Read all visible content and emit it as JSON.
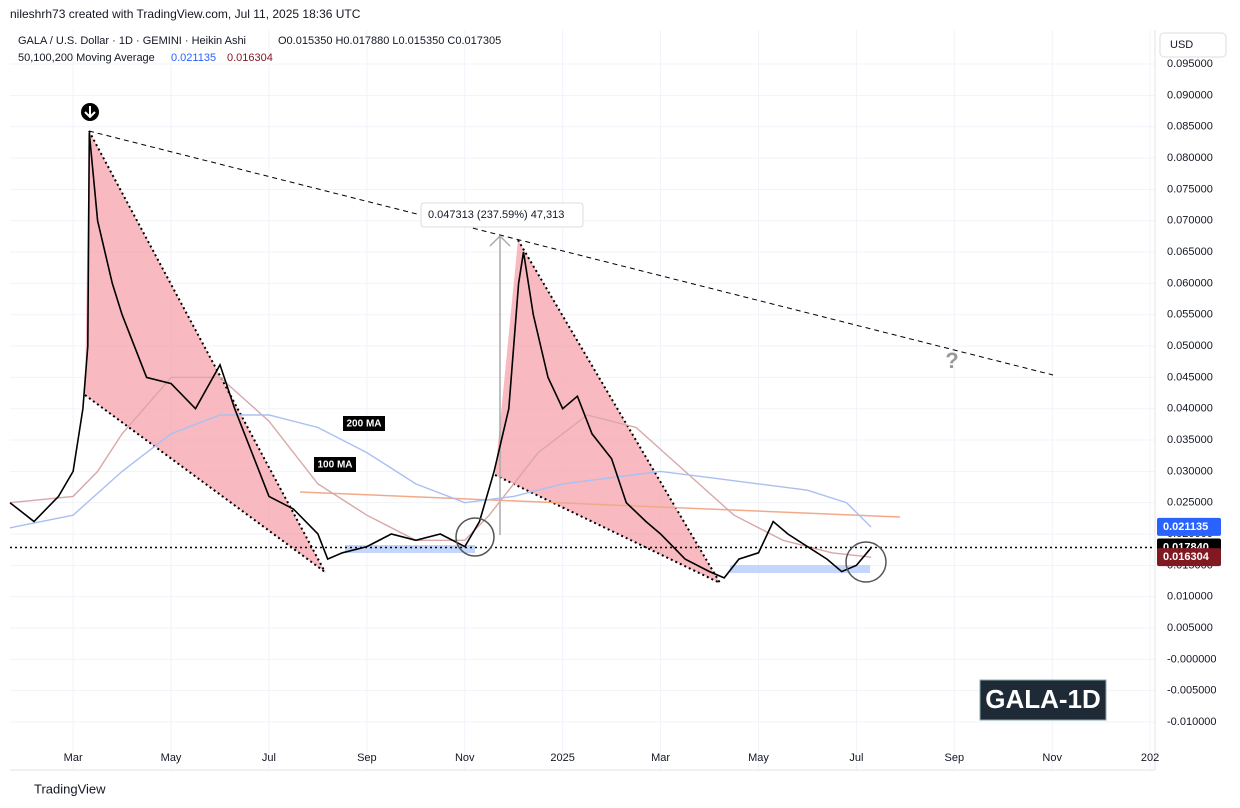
{
  "chart_data": {
    "type": "line",
    "author_line": "nileshrh73 created with TradingView.com, Jul 11, 2025 18:36 UTC",
    "title": "GALA / U.S. Dollar · 1D · GEMINI · Heikin Ashi",
    "ohlc_text": "O0.015350 H0.017880 L0.015350 C0.017305",
    "indicator_name": "50,100,200 Moving Average",
    "indicator_values": [
      "0.021135",
      "0.016304"
    ],
    "currency": "USD",
    "watermark": "GALA-1D",
    "footer": "TradingView",
    "annotations": {
      "measure": "0.047313 (237.59%) 47,313",
      "ma200": "200 MA",
      "ma100": "100 MA",
      "question": "?"
    },
    "xlim": [
      -1.29,
      22.1
    ],
    "xticks": [
      {
        "value": 0,
        "label": "Mar"
      },
      {
        "value": 2,
        "label": "May"
      },
      {
        "value": 4,
        "label": "Jul"
      },
      {
        "value": 6,
        "label": "Sep"
      },
      {
        "value": 8,
        "label": "Nov"
      },
      {
        "value": 10,
        "label": "2025"
      },
      {
        "value": 12,
        "label": "Mar"
      },
      {
        "value": 14,
        "label": "May"
      },
      {
        "value": 16,
        "label": "Jul"
      },
      {
        "value": 18,
        "label": "Sep"
      },
      {
        "value": 20,
        "label": "Nov"
      },
      {
        "value": 22,
        "label": "202"
      }
    ],
    "ylim": [
      -0.01287,
      0.10043
    ],
    "yticks": [
      {
        "value": 0.095,
        "label": "0.095000"
      },
      {
        "value": 0.09,
        "label": "0.090000"
      },
      {
        "value": 0.085,
        "label": "0.085000"
      },
      {
        "value": 0.08,
        "label": "0.080000"
      },
      {
        "value": 0.075,
        "label": "0.075000"
      },
      {
        "value": 0.07,
        "label": "0.070000"
      },
      {
        "value": 0.065,
        "label": "0.065000"
      },
      {
        "value": 0.06,
        "label": "0.060000"
      },
      {
        "value": 0.055,
        "label": "0.055000"
      },
      {
        "value": 0.05,
        "label": "0.050000"
      },
      {
        "value": 0.045,
        "label": "0.045000"
      },
      {
        "value": 0.04,
        "label": "0.040000"
      },
      {
        "value": 0.035,
        "label": "0.035000"
      },
      {
        "value": 0.03,
        "label": "0.030000"
      },
      {
        "value": 0.025,
        "label": "0.025000"
      },
      {
        "value": 0.02,
        "label": "0.020000"
      },
      {
        "value": 0.015,
        "label": "0.015000"
      },
      {
        "value": 0.01,
        "label": "0.010000"
      },
      {
        "value": 0.005,
        "label": "0.005000"
      },
      {
        "value": 0,
        "label": "-0.000000"
      },
      {
        "value": -0.005,
        "label": "-0.005000"
      },
      {
        "value": -0.01,
        "label": "-0.010000"
      }
    ],
    "grid": true,
    "series": [
      {
        "name": "GALA",
        "color": "#000000",
        "width": 1.6,
        "x": [
          -1.29,
          -0.8,
          -0.3,
          0,
          0.2,
          0.3,
          0.33,
          0.5,
          0.8,
          1,
          1.5,
          2,
          2.5,
          3,
          3.3,
          3.7,
          4,
          4.5,
          5,
          5.2,
          5.5,
          6,
          6.5,
          7,
          7.5,
          8,
          8.3,
          8.6,
          8.9,
          9.1,
          9.2,
          9.4,
          9.7,
          10,
          10.3,
          10.6,
          11,
          11.3,
          11.7,
          12,
          12.5,
          13,
          13.3,
          13.6,
          14,
          14.3,
          14.6,
          15,
          15.4,
          15.7,
          16,
          16.3
        ],
        "values": [
          0.025,
          0.022,
          0.026,
          0.03,
          0.04,
          0.05,
          0.084,
          0.07,
          0.06,
          0.055,
          0.045,
          0.044,
          0.04,
          0.047,
          0.04,
          0.032,
          0.026,
          0.024,
          0.02,
          0.016,
          0.017,
          0.018,
          0.02,
          0.019,
          0.02,
          0.018,
          0.022,
          0.03,
          0.04,
          0.06,
          0.065,
          0.055,
          0.045,
          0.04,
          0.042,
          0.036,
          0.032,
          0.025,
          0.022,
          0.02,
          0.016,
          0.014,
          0.013,
          0.016,
          0.017,
          0.022,
          0.02,
          0.018,
          0.016,
          0.014,
          0.015,
          0.0178
        ]
      },
      {
        "name": "200 MA",
        "color": "#aabff2",
        "width": 1.4,
        "x": [
          -1.29,
          0,
          1,
          2,
          3,
          4,
          5,
          6,
          7,
          8,
          9,
          10,
          11,
          12,
          13,
          14,
          15,
          15.8,
          16.3
        ],
        "values": [
          0.021,
          0.023,
          0.03,
          0.036,
          0.039,
          0.039,
          0.037,
          0.033,
          0.028,
          0.025,
          0.026,
          0.028,
          0.029,
          0.03,
          0.029,
          0.028,
          0.027,
          0.025,
          0.0211
        ]
      },
      {
        "name": "100 MA",
        "color": "#d9a7a7",
        "width": 1.4,
        "x": [
          -1.29,
          0,
          0.5,
          1,
          2,
          3,
          4,
          5,
          6,
          7,
          8,
          8.5,
          9.5,
          10.5,
          11.5,
          12.5,
          13.5,
          14.5,
          15.5,
          16.3
        ],
        "values": [
          0.025,
          0.026,
          0.03,
          0.036,
          0.045,
          0.045,
          0.038,
          0.028,
          0.023,
          0.019,
          0.019,
          0.023,
          0.033,
          0.039,
          0.037,
          0.03,
          0.023,
          0.019,
          0.017,
          0.0163
        ]
      }
    ],
    "price_labels": [
      {
        "value": 0.021135,
        "label": "0.021135",
        "color": "#2962ff"
      },
      {
        "value": 0.01784,
        "label": "0.017840",
        "color": "#000000"
      },
      {
        "value": 0.016304,
        "label": "0.016304",
        "color": "#801922"
      }
    ]
  }
}
